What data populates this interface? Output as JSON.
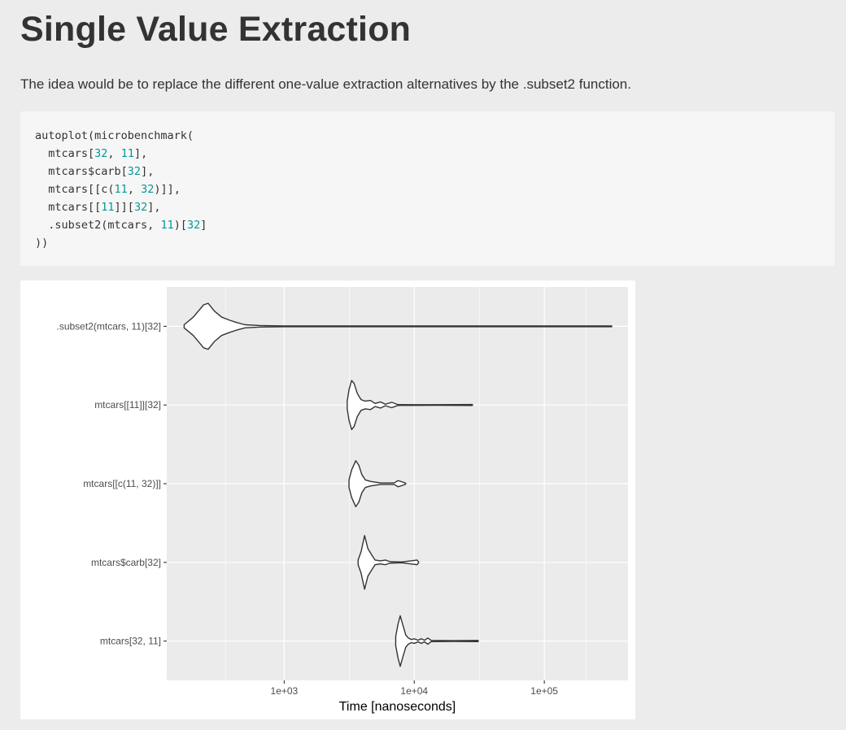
{
  "heading": "Single Value Extraction",
  "intro": "The idea would be to replace the different one-value extraction alternatives by the .subset2 function.",
  "code": [
    [
      {
        "t": "autoplot(microbenchmark("
      }
    ],
    [
      {
        "t": "  mtcars["
      },
      {
        "t": "32",
        "n": true
      },
      {
        "t": ", "
      },
      {
        "t": "11",
        "n": true
      },
      {
        "t": "],"
      }
    ],
    [
      {
        "t": "  mtcars$carb["
      },
      {
        "t": "32",
        "n": true
      },
      {
        "t": "],"
      }
    ],
    [
      {
        "t": "  mtcars[[c("
      },
      {
        "t": "11",
        "n": true
      },
      {
        "t": ", "
      },
      {
        "t": "32",
        "n": true
      },
      {
        "t": ")]],"
      }
    ],
    [
      {
        "t": "  mtcars[["
      },
      {
        "t": "11",
        "n": true
      },
      {
        "t": "]]["
      },
      {
        "t": "32",
        "n": true
      },
      {
        "t": "],"
      }
    ],
    [
      {
        "t": "  .subset2(mtcars, "
      },
      {
        "t": "11",
        "n": true
      },
      {
        "t": ")["
      },
      {
        "t": "32",
        "n": true
      },
      {
        "t": "]"
      }
    ],
    [
      {
        "t": "))"
      }
    ]
  ],
  "colors": {
    "number": "#009999",
    "panel": "#ebebeb",
    "grid": "#ffffff",
    "violin": "#333333"
  },
  "chart_data": {
    "type": "violin",
    "orientation": "horizontal",
    "xlabel": "Time [nanoseconds]",
    "x_scale": "log10",
    "xlim": [
      125,
      440000
    ],
    "x_ticks": [
      {
        "value": 1000,
        "label": "1e+03"
      },
      {
        "value": 10000,
        "label": "1e+04"
      },
      {
        "value": 100000,
        "label": "1e+05"
      }
    ],
    "categories": [
      ".subset2(mtcars, 11)[32]",
      "mtcars[[11]][32]",
      "mtcars[[c(11, 32)]]",
      "mtcars$carb[32]",
      "mtcars[32, 11]"
    ],
    "series": [
      {
        "label": ".subset2(mtcars, 11)[32]",
        "profile": [
          [
            170,
            0.02
          ],
          [
            200,
            0.12
          ],
          [
            240,
            0.28
          ],
          [
            260,
            0.3
          ],
          [
            290,
            0.2
          ],
          [
            330,
            0.12
          ],
          [
            380,
            0.08
          ],
          [
            430,
            0.05
          ],
          [
            500,
            0.02
          ],
          [
            650,
            0.01
          ],
          [
            1000,
            0.005
          ],
          [
            10000,
            0.005
          ],
          [
            100000,
            0.005
          ],
          [
            330000,
            0.005
          ]
        ]
      },
      {
        "label": "mtcars[[11]][32]",
        "profile": [
          [
            3050,
            0.05
          ],
          [
            3150,
            0.2
          ],
          [
            3300,
            0.32
          ],
          [
            3450,
            0.28
          ],
          [
            3650,
            0.15
          ],
          [
            3900,
            0.07
          ],
          [
            4200,
            0.05
          ],
          [
            4600,
            0.06
          ],
          [
            5000,
            0.02
          ],
          [
            5500,
            0.04
          ],
          [
            6000,
            0.01
          ],
          [
            6700,
            0.035
          ],
          [
            7500,
            0.005
          ],
          [
            15000,
            0.004
          ],
          [
            28000,
            0.006
          ]
        ]
      },
      {
        "label": "mtcars[[c(11, 32)]]",
        "profile": [
          [
            3150,
            0.05
          ],
          [
            3300,
            0.18
          ],
          [
            3550,
            0.3
          ],
          [
            3750,
            0.24
          ],
          [
            3950,
            0.12
          ],
          [
            4200,
            0.05
          ],
          [
            4600,
            0.03
          ],
          [
            5500,
            0.01
          ],
          [
            7000,
            0.01
          ],
          [
            7500,
            0.04
          ],
          [
            8200,
            0.02
          ],
          [
            8600,
            0.005
          ]
        ]
      },
      {
        "label": "mtcars$carb[32]",
        "profile": [
          [
            3700,
            0.03
          ],
          [
            3900,
            0.14
          ],
          [
            4150,
            0.35
          ],
          [
            4400,
            0.18
          ],
          [
            4700,
            0.1
          ],
          [
            5000,
            0.03
          ],
          [
            5500,
            0.02
          ],
          [
            6000,
            0.03
          ],
          [
            6500,
            0.01
          ],
          [
            8000,
            0.005
          ],
          [
            10500,
            0.03
          ],
          [
            10800,
            0.005
          ]
        ]
      },
      {
        "label": "mtcars[32, 11]",
        "profile": [
          [
            7200,
            0.06
          ],
          [
            7500,
            0.22
          ],
          [
            7800,
            0.33
          ],
          [
            8200,
            0.2
          ],
          [
            8600,
            0.08
          ],
          [
            9000,
            0.04
          ],
          [
            9500,
            0.02
          ],
          [
            10000,
            0.03
          ],
          [
            10700,
            0.01
          ],
          [
            11300,
            0.03
          ],
          [
            12000,
            0.01
          ],
          [
            12700,
            0.04
          ],
          [
            13500,
            0.008
          ],
          [
            20000,
            0.005
          ],
          [
            31000,
            0.008
          ]
        ]
      }
    ]
  }
}
